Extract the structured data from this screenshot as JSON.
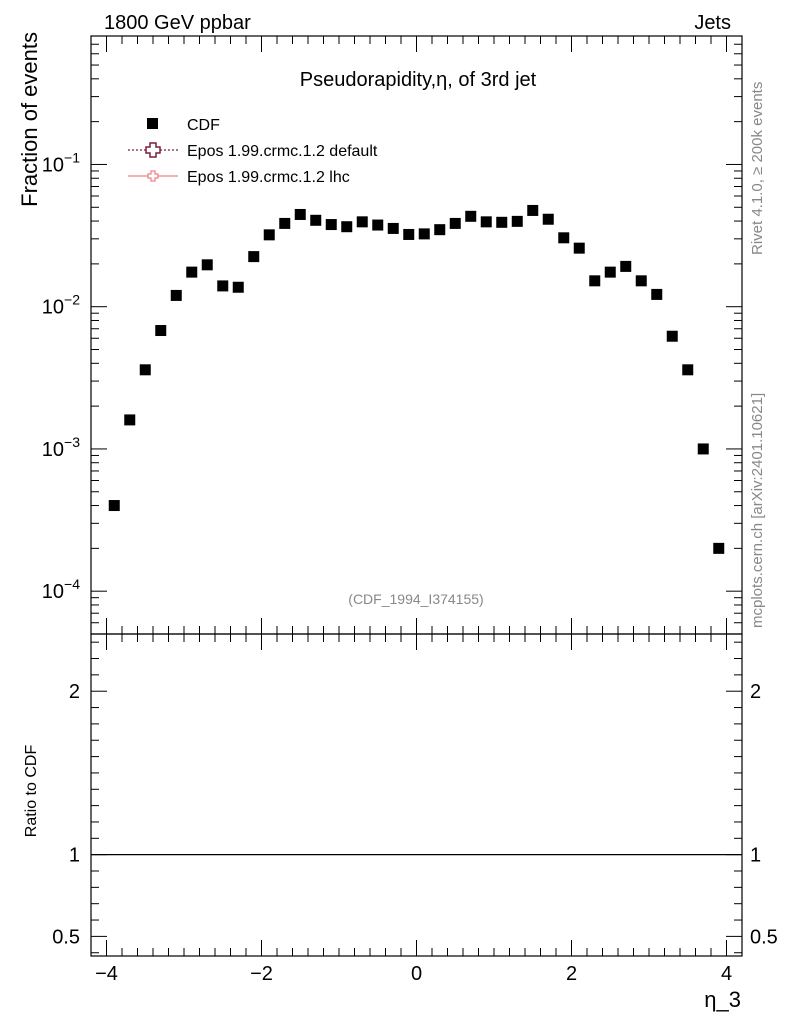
{
  "header": {
    "left_label": "1800 GeV ppbar",
    "right_label": "Jets"
  },
  "side_labels": {
    "rivet": "Rivet 4.1.0, ≥ 200k events",
    "mcplots": "mcplots.cern.ch [arXiv:2401.10621]"
  },
  "chart_data": {
    "type": "scatter",
    "title": "Pseudorapidity,η, of 3rd jet",
    "xlabel": "η_3",
    "ylabel": "Fraction of events",
    "ratio_ylabel": "Ratio to CDF",
    "analysis_tag": "(CDF_1994_I374155)",
    "xlim": [
      -4.2,
      4.2
    ],
    "ylim": [
      5e-05,
      0.8
    ],
    "yscale": "log",
    "ratio_ylim": [
      0.38,
      2.35
    ],
    "x_ticks": [
      -4,
      -2,
      0,
      2,
      4
    ],
    "x_tick_labels": [
      "−4",
      "−2",
      "0",
      "2",
      "4"
    ],
    "y_ticks": [
      {
        "value": 0.1,
        "base": "10",
        "exp": "−1"
      },
      {
        "value": 0.01,
        "base": "10",
        "exp": "−2"
      },
      {
        "value": 0.001,
        "base": "10",
        "exp": "−3"
      },
      {
        "value": 0.0001,
        "base": "10",
        "exp": "−4"
      }
    ],
    "ratio_ticks": [
      {
        "value": 2,
        "label": "2"
      },
      {
        "value": 1,
        "label": "1"
      },
      {
        "value": 0.5,
        "label": "0.5"
      }
    ],
    "legend": [
      {
        "name": "CDF",
        "marker": "square",
        "color": "#000000"
      },
      {
        "name": "Epos 1.99.crmc.1.2 default",
        "marker": "open-cross",
        "color": "#7a1f3d"
      },
      {
        "name": "Epos 1.99.crmc.1.2 lhc",
        "marker": "open-cross",
        "color": "#f08080"
      }
    ],
    "series": [
      {
        "name": "CDF",
        "x": [
          -3.9,
          -3.7,
          -3.5,
          -3.3,
          -3.1,
          -2.9,
          -2.7,
          -2.5,
          -2.3,
          -2.1,
          -1.9,
          -1.7,
          -1.5,
          -1.3,
          -1.1,
          -0.9,
          -0.7,
          -0.5,
          -0.3,
          -0.1,
          0.1,
          0.3,
          0.5,
          0.7,
          0.9,
          1.1,
          1.3,
          1.5,
          1.7,
          1.9,
          2.1,
          2.3,
          2.5,
          2.7,
          2.9,
          3.1,
          3.3,
          3.5,
          3.7,
          3.9
        ],
        "y": [
          0.0004,
          0.0016,
          0.0036,
          0.0068,
          0.012,
          0.0175,
          0.0197,
          0.014,
          0.0137,
          0.0225,
          0.032,
          0.0385,
          0.0445,
          0.0405,
          0.0378,
          0.0365,
          0.0395,
          0.0375,
          0.0355,
          0.0322,
          0.0325,
          0.0348,
          0.0385,
          0.0432,
          0.0395,
          0.0392,
          0.0398,
          0.0475,
          0.0412,
          0.0305,
          0.0258,
          0.0152,
          0.0175,
          0.0192,
          0.0152,
          0.0122,
          0.0062,
          0.0036,
          0.001,
          0.0002
        ]
      }
    ]
  }
}
